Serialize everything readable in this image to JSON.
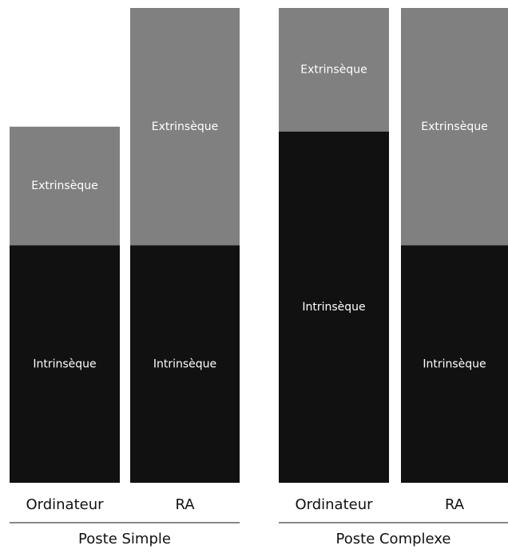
{
  "chart_data": {
    "type": "stacked_bar",
    "categories": [
      "Ordinateur",
      "RA",
      "Ordinateur",
      "RA"
    ],
    "groups": [
      "Poste Simple",
      "Poste Complexe"
    ],
    "series": [
      {
        "name": "Intrinsèque",
        "color": "#111111",
        "values": [
          50,
          50,
          74,
          50
        ]
      },
      {
        "name": "Extrinsèque",
        "color": "#808080",
        "values": [
          25,
          50,
          26,
          50
        ]
      }
    ],
    "ylim": [
      0,
      100
    ]
  }
}
